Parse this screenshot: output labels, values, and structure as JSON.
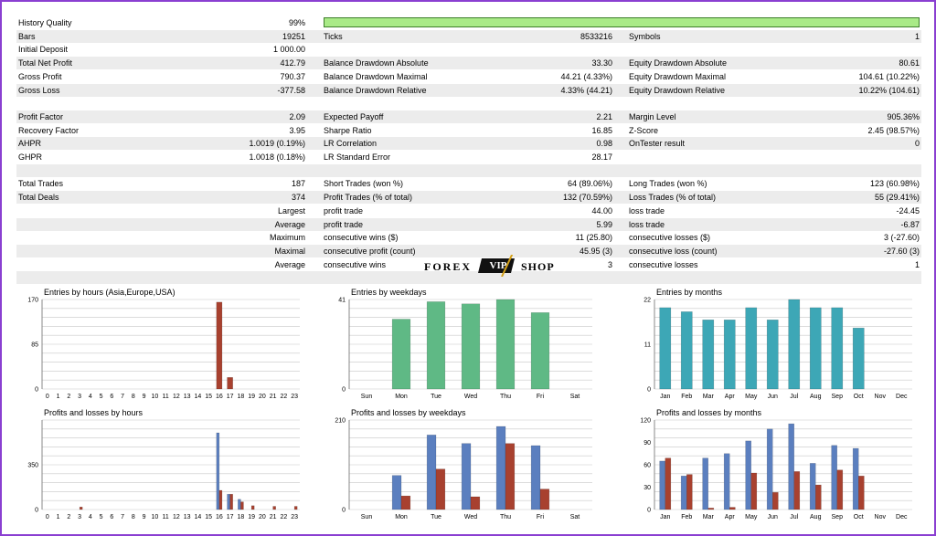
{
  "rows": [
    {
      "c1": [
        "History Quality",
        "99%"
      ],
      "c2": [
        "",
        ""
      ],
      "c3": [
        "",
        ""
      ],
      "shade": false
    },
    {
      "c1": [
        "Bars",
        "19251"
      ],
      "c2": [
        "Ticks",
        "8533216"
      ],
      "c3": [
        "Symbols",
        "1"
      ],
      "shade": true
    },
    {
      "c1": [
        "Initial Deposit",
        "1 000.00"
      ],
      "c2": [
        "",
        ""
      ],
      "c3": [
        "",
        ""
      ],
      "shade": false
    },
    {
      "c1": [
        "Total Net Profit",
        "412.79"
      ],
      "c2": [
        "Balance Drawdown Absolute",
        "33.30"
      ],
      "c3": [
        "Equity Drawdown Absolute",
        "80.61"
      ],
      "shade": true
    },
    {
      "c1": [
        "Gross Profit",
        "790.37"
      ],
      "c2": [
        "Balance Drawdown Maximal",
        "44.21 (4.33%)"
      ],
      "c3": [
        "Equity Drawdown Maximal",
        "104.61 (10.22%)"
      ],
      "shade": false
    },
    {
      "c1": [
        "Gross Loss",
        "-377.58"
      ],
      "c2": [
        "Balance Drawdown Relative",
        "4.33% (44.21)"
      ],
      "c3": [
        "Equity Drawdown Relative",
        "10.22% (104.61)"
      ],
      "shade": true
    },
    {
      "c1": [
        "",
        ""
      ],
      "c2": [
        "",
        ""
      ],
      "c3": [
        "",
        ""
      ],
      "shade": false
    },
    {
      "c1": [
        "Profit Factor",
        "2.09"
      ],
      "c2": [
        "Expected Payoff",
        "2.21"
      ],
      "c3": [
        "Margin Level",
        "905.36%"
      ],
      "shade": true
    },
    {
      "c1": [
        "Recovery Factor",
        "3.95"
      ],
      "c2": [
        "Sharpe Ratio",
        "16.85"
      ],
      "c3": [
        "Z-Score",
        "2.45 (98.57%)"
      ],
      "shade": false
    },
    {
      "c1": [
        "AHPR",
        "1.0019 (0.19%)"
      ],
      "c2": [
        "LR Correlation",
        "0.98"
      ],
      "c3": [
        "OnTester result",
        "0"
      ],
      "shade": true
    },
    {
      "c1": [
        "GHPR",
        "1.0018 (0.18%)"
      ],
      "c2": [
        "LR Standard Error",
        "28.17"
      ],
      "c3": [
        "",
        ""
      ],
      "shade": false
    },
    {
      "c1": [
        "",
        ""
      ],
      "c2": [
        "",
        ""
      ],
      "c3": [
        "",
        ""
      ],
      "shade": true
    },
    {
      "c1": [
        "Total Trades",
        "187"
      ],
      "c2": [
        "Short Trades (won %)",
        "64 (89.06%)"
      ],
      "c3": [
        "Long Trades (won %)",
        "123 (60.98%)"
      ],
      "shade": false
    },
    {
      "c1": [
        "Total Deals",
        "374"
      ],
      "c2": [
        "Profit Trades (% of total)",
        "132 (70.59%)"
      ],
      "c3": [
        "Loss Trades (% of total)",
        "55 (29.41%)"
      ],
      "shade": true
    },
    {
      "c1": [
        "",
        "Largest"
      ],
      "c2": [
        "profit trade",
        "44.00"
      ],
      "c3": [
        "loss trade",
        "-24.45"
      ],
      "shade": false,
      "sub": true
    },
    {
      "c1": [
        "",
        "Average"
      ],
      "c2": [
        "profit trade",
        "5.99"
      ],
      "c3": [
        "loss trade",
        "-6.87"
      ],
      "shade": true,
      "sub": true
    },
    {
      "c1": [
        "",
        "Maximum"
      ],
      "c2": [
        "consecutive wins ($)",
        "11 (25.80)"
      ],
      "c3": [
        "consecutive losses ($)",
        "3 (-27.60)"
      ],
      "shade": false,
      "sub": true
    },
    {
      "c1": [
        "",
        "Maximal"
      ],
      "c2": [
        "consecutive profit (count)",
        "45.95 (3)"
      ],
      "c3": [
        "consecutive loss (count)",
        "-27.60 (3)"
      ],
      "shade": true,
      "sub": true
    },
    {
      "c1": [
        "",
        "Average"
      ],
      "c2": [
        "consecutive wins",
        "3"
      ],
      "c3": [
        "consecutive losses",
        "1"
      ],
      "shade": false,
      "sub": true
    },
    {
      "c1": [
        "",
        ""
      ],
      "c2": [
        "",
        ""
      ],
      "c3": [
        "",
        ""
      ],
      "shade": true
    }
  ],
  "history_quality_fill": 0.99,
  "watermark": {
    "left": "FOREX",
    "badge": "VIP",
    "right": "SHOP"
  },
  "colors": {
    "green": "#5fb985",
    "blue": "#5b7fbf",
    "red": "#a8412f",
    "teal": "#3da7b6",
    "grid": "#c8c8c8"
  },
  "chart_data": [
    {
      "type": "bar",
      "title": "Entries by hours (Asia,Europe,USA)",
      "categories": [
        "0",
        "1",
        "2",
        "3",
        "4",
        "5",
        "6",
        "7",
        "8",
        "9",
        "10",
        "11",
        "12",
        "13",
        "14",
        "15",
        "16",
        "17",
        "18",
        "19",
        "20",
        "21",
        "22",
        "23"
      ],
      "yticks": [
        "0",
        "85",
        "170"
      ],
      "ylim": [
        0,
        170
      ],
      "series": [
        {
          "color": "red",
          "values": [
            0,
            0,
            0,
            0,
            0,
            0,
            0,
            0,
            0,
            0,
            0,
            0,
            0,
            0,
            0,
            0,
            165,
            22,
            0,
            0,
            0,
            0,
            0,
            0
          ]
        }
      ]
    },
    {
      "type": "bar",
      "title": "Entries by weekdays",
      "categories": [
        "Sun",
        "Mon",
        "Tue",
        "Wed",
        "Thu",
        "Fri",
        "Sat"
      ],
      "yticks": [
        "0",
        "41"
      ],
      "ylim": [
        0,
        41
      ],
      "series": [
        {
          "color": "green",
          "values": [
            0,
            32,
            40,
            39,
            41,
            35,
            0
          ]
        }
      ]
    },
    {
      "type": "bar",
      "title": "Entries by months",
      "categories": [
        "Jan",
        "Feb",
        "Mar",
        "Apr",
        "May",
        "Jun",
        "Jul",
        "Aug",
        "Sep",
        "Oct",
        "Nov",
        "Dec"
      ],
      "yticks": [
        "0",
        "11",
        "22"
      ],
      "ylim": [
        0,
        22
      ],
      "series": [
        {
          "color": "teal",
          "values": [
            20,
            19,
            17,
            17,
            20,
            17,
            22,
            20,
            20,
            15,
            0,
            0
          ]
        }
      ]
    },
    {
      "type": "bar",
      "title": "Profits and losses by hours",
      "categories": [
        "0",
        "1",
        "2",
        "3",
        "4",
        "5",
        "6",
        "7",
        "8",
        "9",
        "10",
        "11",
        "12",
        "13",
        "14",
        "15",
        "16",
        "17",
        "18",
        "19",
        "20",
        "21",
        "22",
        "23"
      ],
      "yticks": [
        "0",
        "350"
      ],
      "ylim": [
        0,
        700
      ],
      "series": [
        {
          "color": "blue",
          "values": [
            0,
            0,
            0,
            0,
            0,
            0,
            0,
            0,
            0,
            0,
            0,
            0,
            0,
            0,
            0,
            0,
            600,
            120,
            80,
            0,
            0,
            0,
            0,
            0
          ]
        },
        {
          "color": "red",
          "values": [
            0,
            0,
            0,
            20,
            0,
            0,
            0,
            0,
            0,
            0,
            0,
            0,
            0,
            0,
            0,
            0,
            150,
            120,
            60,
            30,
            0,
            25,
            0,
            25
          ]
        }
      ]
    },
    {
      "type": "bar",
      "title": "Profits and losses by weekdays",
      "categories": [
        "Sun",
        "Mon",
        "Tue",
        "Wed",
        "Thu",
        "Fri",
        "Sat"
      ],
      "yticks": [
        "0",
        "210"
      ],
      "ylim": [
        0,
        210
      ],
      "series": [
        {
          "color": "blue",
          "values": [
            0,
            80,
            175,
            155,
            195,
            150,
            0
          ]
        },
        {
          "color": "red",
          "values": [
            0,
            32,
            95,
            30,
            155,
            48,
            0
          ]
        }
      ]
    },
    {
      "type": "bar",
      "title": "Profits and losses by months",
      "categories": [
        "Jan",
        "Feb",
        "Mar",
        "Apr",
        "May",
        "Jun",
        "Jul",
        "Aug",
        "Sep",
        "Oct",
        "Nov",
        "Dec"
      ],
      "yticks": [
        "0",
        "30",
        "60",
        "90",
        "120"
      ],
      "ylim": [
        0,
        120
      ],
      "series": [
        {
          "color": "blue",
          "values": [
            65,
            45,
            69,
            75,
            92,
            108,
            115,
            62,
            86,
            82,
            0,
            0
          ]
        },
        {
          "color": "red",
          "values": [
            69,
            47,
            2,
            3,
            49,
            23,
            51,
            33,
            53,
            45,
            0,
            0
          ]
        }
      ]
    }
  ]
}
